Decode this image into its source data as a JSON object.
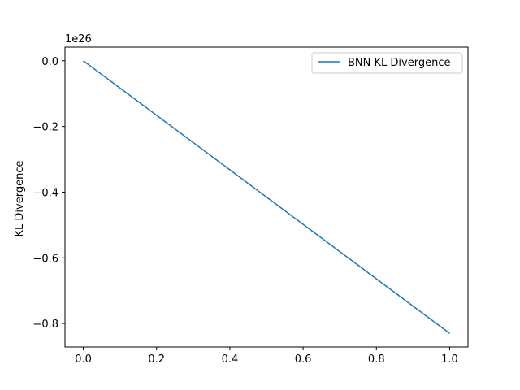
{
  "chart_data": {
    "type": "line",
    "title": "",
    "xlabel": "",
    "ylabel": "KL Divergence",
    "y_offset_label": "1e26",
    "xlim": [
      -0.05,
      1.05
    ],
    "ylim": [
      -0.8715,
      0.0415
    ],
    "xticks": [
      0.0,
      0.2,
      0.4,
      0.6,
      0.8,
      1.0
    ],
    "xtick_labels": [
      "0.0",
      "0.2",
      "0.4",
      "0.6",
      "0.8",
      "1.0"
    ],
    "yticks": [
      0.0,
      -0.2,
      -0.4,
      -0.6,
      -0.8
    ],
    "ytick_labels": [
      "0.0",
      "−0.2",
      "−0.4",
      "−0.6",
      "−0.8"
    ],
    "grid": false,
    "legend_position": "top-right",
    "series": [
      {
        "name": "BNN KL Divergence",
        "color": "#1f77b4",
        "x": [
          0.0,
          1.0
        ],
        "y": [
          0.0,
          -0.83
        ]
      }
    ]
  }
}
